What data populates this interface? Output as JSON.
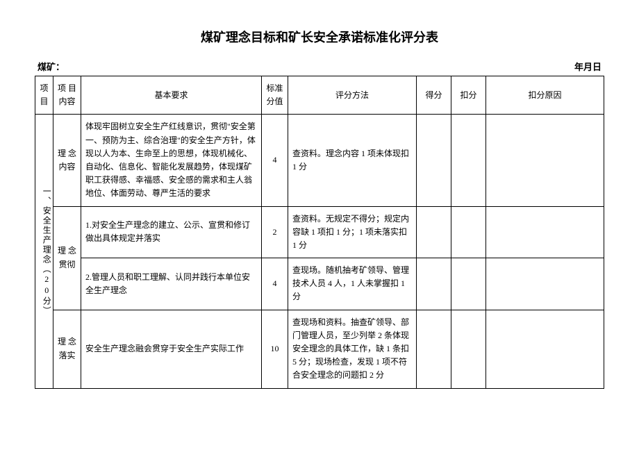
{
  "title": "煤矿理念目标和矿长安全承诺标准化评分表",
  "header_left": "煤矿：",
  "header_right": "年月日",
  "columns": {
    "c1": "项目",
    "c2": "项 目 内容",
    "c3": "基本要求",
    "c4": "标准分值",
    "c5": "评分方法",
    "c6": "得分",
    "c7": "扣分",
    "c8": "扣分原因"
  },
  "project_label": "一、安全生产理念（20分）",
  "rows": [
    {
      "content": "理 念 内容",
      "content_rowspan": 1,
      "requirement": "体现牢固树立安全生产红线意识，贯彻\"安全第一、预防为主、综合治理\"的安全生产方针，体现以人为本、生命至上的思想，体现机械化、自动化、信息化、智能化发展趋势，体现煤矿职工获得感、幸福感、安全感的需求和主人翁地位、体面劳动、尊严生活的要求",
      "score": "4",
      "method": "查资料。理念内容 1 项未体现扣 1 分"
    },
    {
      "content": "理 念 贯彻",
      "content_rowspan": 2,
      "requirement": "1.对安全生产理念的建立、公示、宣贯和修订做出具体规定并落实",
      "score": "2",
      "method": "查资料。无规定不得分；规定内容缺 1 项扣 1 分；1 项未落实扣 1 分"
    },
    {
      "requirement": "2.管理人员和职工理解、认同并践行本单位安全生产理念",
      "score": "4",
      "method": "查现场。随机抽考矿领导、管理技术人员 4 人，1 人未掌握扣 1 分"
    },
    {
      "content": "理 念 落实",
      "content_rowspan": 1,
      "requirement": "安全生产理念融会贯穿于安全生产实际工作",
      "score": "10",
      "method": "查现场和资料。抽查矿领导、部门管理人员，至少列举 2 条体现安全理念的具体工作，缺 1 条扣 5 分；现场检查，发现 1 项不符合安全理念的问题扣 2 分"
    }
  ]
}
